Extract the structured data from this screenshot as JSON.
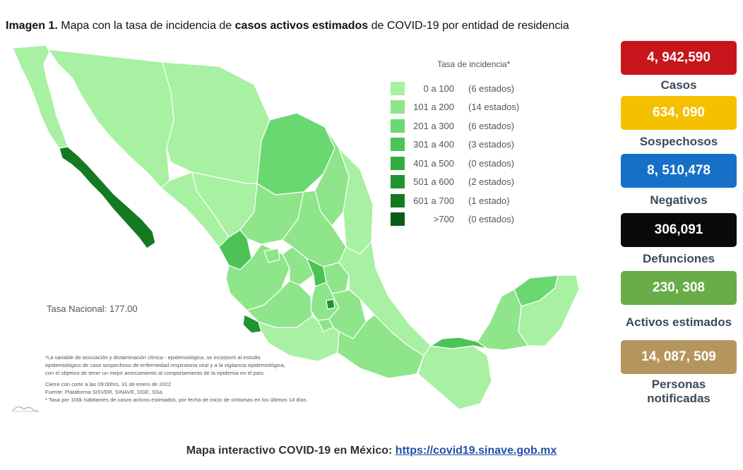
{
  "title": {
    "prefix": "Imagen 1.",
    "part1": "Mapa con la tasa de incidencia de",
    "bold": "casos activos estimados",
    "part2": "de COVID-19 por entidad de residencia"
  },
  "legend": {
    "title": "Tasa de incidencia*",
    "items": [
      {
        "range": "0 a  100",
        "count": "(6 estados)",
        "color": "#a8f0a2"
      },
      {
        "range": "101 a  200",
        "count": "(14 estados)",
        "color": "#8ee58a"
      },
      {
        "range": "201 a  300",
        "count": "(6 estados)",
        "color": "#6ad870"
      },
      {
        "range": "301 a  400",
        "count": "(3 estados)",
        "color": "#4cc356"
      },
      {
        "range": "401 a  500",
        "count": "(0 estados)",
        "color": "#33ad40"
      },
      {
        "range": "501 a  600",
        "count": "(2 estados)",
        "color": "#1f9430"
      },
      {
        "range": "601 a  700",
        "count": "(1 estado)",
        "color": "#137a22"
      },
      {
        "range": ">700",
        "count": "(0 estados)",
        "color": "#0a5c16"
      }
    ]
  },
  "tasa_nacional": "Tasa Nacional: 177.00",
  "notes": {
    "line1": "*La variable de asociación y dictaminación clínica - epidemiológica, se incorporó al estudio",
    "line2": "epidemiológico de caso sospechoso de enfermedad respiratoria viral y a la vigilancia epidemiológica,",
    "line3": "con el objetivo de tener un mejor acercamiento al comportamiento de la epidemia en el país.",
    "line4": "Cierre con corte a las 09:00hrs, 31 de enero de 2022",
    "line5": "Fuente: Plataforma SISVER, SINAVE, DGE, SSa.",
    "line6": "* Tasa por 100k habitantes de casos activos estimados, por fecha de inicio de síntomas en los últimos 14 días."
  },
  "stats": [
    {
      "value": "4, 942,590",
      "label": "Casos",
      "color": "#c8151b"
    },
    {
      "value": "634, 090",
      "label": "Sospechosos",
      "color": "#f5c000"
    },
    {
      "value": "8, 510,478",
      "label": "Negativos",
      "color": "#1670c8"
    },
    {
      "value": "306,091",
      "label": "Defunciones",
      "color": "#0a0a0a"
    },
    {
      "value": "230, 308",
      "label": "Activos estimados",
      "color": "#6aac47"
    },
    {
      "value": "14, 087, 509",
      "label": "Personas notificadas",
      "color": "#b5955e"
    }
  ],
  "footer": {
    "text": "Mapa interactivo COVID-19 en México:",
    "link": "https://covid19.sinave.gob.mx"
  }
}
